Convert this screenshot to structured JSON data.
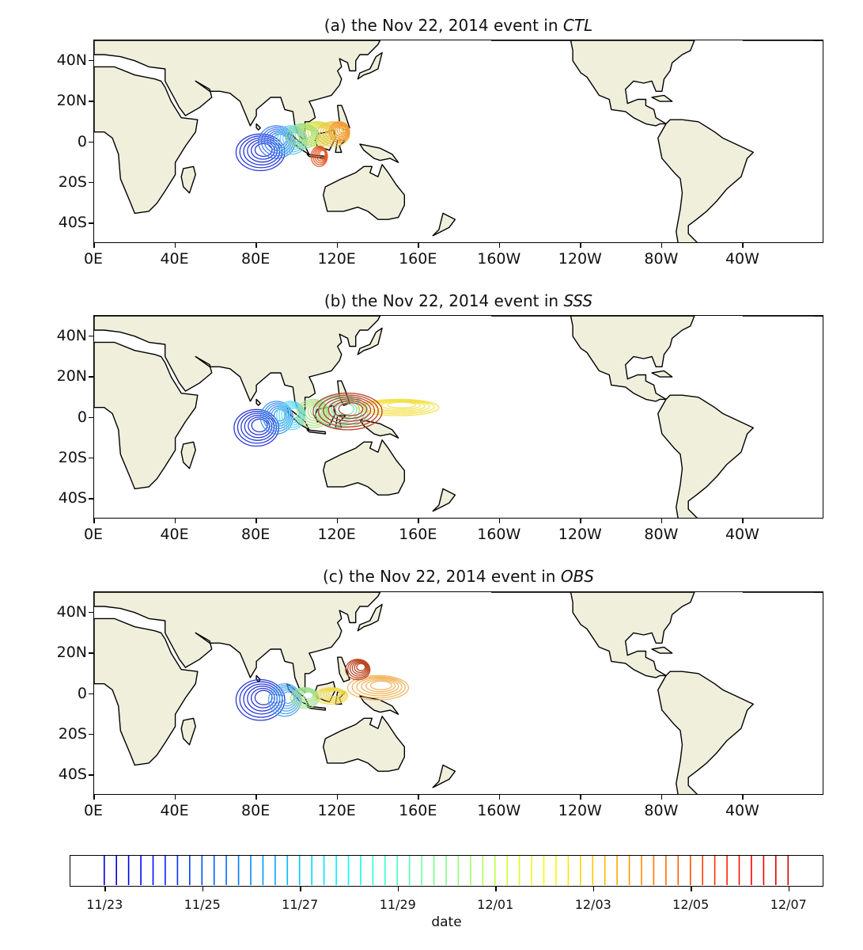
{
  "panels": [
    {
      "title_prefix": "(a) the Nov 22, 2014 event in ",
      "title_exp": "CTL",
      "experiment": "CTL",
      "blobs": [
        {
          "lon": 82,
          "lat": -5,
          "rx": 12,
          "ry": 9,
          "color": "#1f2fd6"
        },
        {
          "lon": 90,
          "lat": 0,
          "rx": 9,
          "ry": 8,
          "color": "#3b78f0"
        },
        {
          "lon": 97,
          "lat": 1,
          "rx": 8,
          "ry": 7,
          "color": "#60c8f0"
        },
        {
          "lon": 103,
          "lat": 3,
          "rx": 8,
          "ry": 6,
          "color": "#8de08e"
        },
        {
          "lon": 110,
          "lat": 4,
          "rx": 9,
          "ry": 6,
          "color": "#d7e046"
        },
        {
          "lon": 118,
          "lat": 4,
          "rx": 8,
          "ry": 6,
          "color": "#f2c24a"
        },
        {
          "lon": 121,
          "lat": 5,
          "rx": 5,
          "ry": 5,
          "color": "#f29a3a"
        },
        {
          "lon": 111,
          "lat": -7,
          "rx": 4,
          "ry": 5,
          "color": "#e35b2a"
        }
      ]
    },
    {
      "title_prefix": "(b) the Nov 22, 2014 event in ",
      "title_exp": "SSS",
      "experiment": "SSS",
      "blobs": [
        {
          "lon": 80,
          "lat": -5,
          "rx": 11,
          "ry": 9,
          "color": "#1f2fd6"
        },
        {
          "lon": 90,
          "lat": 0,
          "rx": 8,
          "ry": 8,
          "color": "#3b90f0"
        },
        {
          "lon": 97,
          "lat": 1,
          "rx": 7,
          "ry": 7,
          "color": "#60d8f0"
        },
        {
          "lon": 108,
          "lat": 2,
          "rx": 8,
          "ry": 7,
          "color": "#a8e07e"
        },
        {
          "lon": 122,
          "lat": 3,
          "rx": 13,
          "ry": 8,
          "color": "#7ee0b0"
        },
        {
          "lon": 150,
          "lat": 5,
          "rx": 20,
          "ry": 4,
          "color": "#f2e24a"
        },
        {
          "lon": 125,
          "lat": 3,
          "rx": 17,
          "ry": 9,
          "color": "#b83a1e"
        }
      ]
    },
    {
      "title_prefix": "(c) the Nov 22, 2014 event in ",
      "title_exp": "OBS",
      "experiment": "OBS",
      "blobs": [
        {
          "lon": 82,
          "lat": -3,
          "rx": 12,
          "ry": 10,
          "color": "#1f2fd6"
        },
        {
          "lon": 94,
          "lat": -3,
          "rx": 8,
          "ry": 8,
          "color": "#50a8f0"
        },
        {
          "lon": 104,
          "lat": -2,
          "rx": 7,
          "ry": 5,
          "color": "#9ee08e"
        },
        {
          "lon": 117,
          "lat": -1,
          "rx": 8,
          "ry": 4,
          "color": "#f0d84a"
        },
        {
          "lon": 140,
          "lat": 3,
          "rx": 15,
          "ry": 6,
          "color": "#f0b25a"
        },
        {
          "lon": 130,
          "lat": 12,
          "rx": 6,
          "ry": 5,
          "color": "#b8421e"
        }
      ]
    }
  ],
  "lat_ticks": [
    {
      "label": "40N",
      "value": 40
    },
    {
      "label": "20N",
      "value": 20
    },
    {
      "label": "0",
      "value": 0
    },
    {
      "label": "20S",
      "value": -20
    },
    {
      "label": "40S",
      "value": -40
    }
  ],
  "lon_ticks": [
    {
      "label": "0E",
      "value": 0
    },
    {
      "label": "40E",
      "value": 40
    },
    {
      "label": "80E",
      "value": 80
    },
    {
      "label": "120E",
      "value": 120
    },
    {
      "label": "160E",
      "value": 160
    },
    {
      "label": "160W",
      "value": 200
    },
    {
      "label": "120W",
      "value": 240
    },
    {
      "label": "80W",
      "value": 280
    },
    {
      "label": "40W",
      "value": 320
    }
  ],
  "map_extent": {
    "lon_min": 0,
    "lon_max": 360,
    "lat_min": -50,
    "lat_max": 50
  },
  "colors": {
    "land": "#efefdc",
    "coast": "#000000"
  },
  "colorbar": {
    "label": "date",
    "ticks": [
      {
        "label": "11/23",
        "position": 0.0
      },
      {
        "label": "11/25",
        "position": 0.1429
      },
      {
        "label": "11/27",
        "position": 0.2857
      },
      {
        "label": "11/29",
        "position": 0.4286
      },
      {
        "label": "12/01",
        "position": 0.5714
      },
      {
        "label": "12/03",
        "position": 0.7143
      },
      {
        "label": "12/05",
        "position": 0.8571
      },
      {
        "label": "12/07",
        "position": 1.0
      }
    ],
    "line_count": 57,
    "start_fraction": 0.045,
    "end_fraction": 0.955,
    "colormap": "jet"
  }
}
